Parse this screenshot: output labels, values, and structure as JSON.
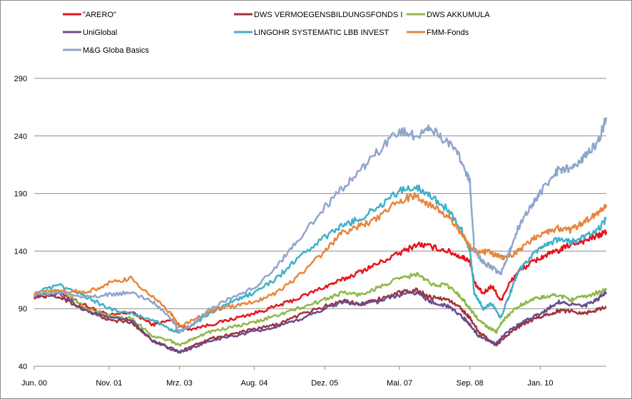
{
  "chart_data": {
    "type": "line",
    "title": "",
    "xlabel": "",
    "ylabel": "",
    "ylim": [
      40,
      290
    ],
    "yticks": [
      40,
      90,
      140,
      190,
      240,
      290
    ],
    "grid": "horizontal",
    "legend_position": "top",
    "x_tick_labels": [
      "Jun. 00",
      "Nov. 01",
      "Mrz. 03",
      "Aug. 04",
      "Dez. 05",
      "Mai. 07",
      "Sep. 08",
      "Jan. 10"
    ],
    "x_tick_positions": [
      0,
      17,
      33,
      50,
      66,
      83,
      99,
      115
    ],
    "x_max": 130,
    "series": [
      {
        "name": "\"ARERO\"",
        "color": "#e8141c",
        "points": [
          [
            0,
            100
          ],
          [
            6,
            104
          ],
          [
            12,
            92
          ],
          [
            17,
            84
          ],
          [
            22,
            87
          ],
          [
            27,
            76
          ],
          [
            31,
            80
          ],
          [
            35,
            72
          ],
          [
            40,
            76
          ],
          [
            45,
            81
          ],
          [
            50,
            86
          ],
          [
            55,
            92
          ],
          [
            60,
            99
          ],
          [
            66,
            109
          ],
          [
            70,
            115
          ],
          [
            74,
            122
          ],
          [
            78,
            129
          ],
          [
            83,
            138
          ],
          [
            87,
            146
          ],
          [
            90,
            144
          ],
          [
            94,
            140
          ],
          [
            97,
            135
          ],
          [
            99,
            132
          ],
          [
            100,
            112
          ],
          [
            102,
            103
          ],
          [
            104,
            110
          ],
          [
            106,
            97
          ],
          [
            108,
            112
          ],
          [
            110,
            122
          ],
          [
            113,
            130
          ],
          [
            116,
            136
          ],
          [
            119,
            140
          ],
          [
            122,
            146
          ],
          [
            125,
            149
          ],
          [
            128,
            153
          ],
          [
            130,
            157
          ]
        ]
      },
      {
        "name": "DWS VERMOEGENSBILDUNGSFONDS  I",
        "color": "#a0333a",
        "points": [
          [
            0,
            102
          ],
          [
            6,
            100
          ],
          [
            12,
            88
          ],
          [
            17,
            80
          ],
          [
            22,
            78
          ],
          [
            27,
            62
          ],
          [
            31,
            56
          ],
          [
            33,
            52
          ],
          [
            36,
            58
          ],
          [
            40,
            64
          ],
          [
            45,
            68
          ],
          [
            50,
            72
          ],
          [
            55,
            76
          ],
          [
            60,
            84
          ],
          [
            66,
            92
          ],
          [
            70,
            97
          ],
          [
            74,
            94
          ],
          [
            78,
            98
          ],
          [
            83,
            104
          ],
          [
            87,
            106
          ],
          [
            90,
            100
          ],
          [
            94,
            98
          ],
          [
            97,
            90
          ],
          [
            99,
            82
          ],
          [
            101,
            70
          ],
          [
            103,
            64
          ],
          [
            105,
            58
          ],
          [
            107,
            66
          ],
          [
            110,
            74
          ],
          [
            113,
            80
          ],
          [
            116,
            84
          ],
          [
            119,
            88
          ],
          [
            122,
            88
          ],
          [
            125,
            86
          ],
          [
            128,
            89
          ],
          [
            130,
            92
          ]
        ]
      },
      {
        "name": "DWS AKKUMULA",
        "color": "#8fb84a",
        "points": [
          [
            0,
            102
          ],
          [
            6,
            106
          ],
          [
            12,
            90
          ],
          [
            17,
            84
          ],
          [
            22,
            82
          ],
          [
            27,
            66
          ],
          [
            31,
            62
          ],
          [
            33,
            58
          ],
          [
            36,
            64
          ],
          [
            40,
            70
          ],
          [
            45,
            74
          ],
          [
            50,
            78
          ],
          [
            55,
            84
          ],
          [
            60,
            90
          ],
          [
            66,
            98
          ],
          [
            70,
            104
          ],
          [
            74,
            102
          ],
          [
            78,
            108
          ],
          [
            83,
            116
          ],
          [
            87,
            120
          ],
          [
            90,
            112
          ],
          [
            94,
            110
          ],
          [
            97,
            100
          ],
          [
            99,
            90
          ],
          [
            101,
            80
          ],
          [
            103,
            74
          ],
          [
            105,
            70
          ],
          [
            107,
            82
          ],
          [
            110,
            92
          ],
          [
            113,
            98
          ],
          [
            116,
            100
          ],
          [
            119,
            102
          ],
          [
            122,
            98
          ],
          [
            125,
            100
          ],
          [
            128,
            104
          ],
          [
            130,
            106
          ]
        ]
      },
      {
        "name": "UniGlobal",
        "color": "#6b4c8c",
        "points": [
          [
            0,
            101
          ],
          [
            6,
            102
          ],
          [
            12,
            88
          ],
          [
            17,
            82
          ],
          [
            22,
            80
          ],
          [
            27,
            62
          ],
          [
            31,
            55
          ],
          [
            33,
            52
          ],
          [
            36,
            56
          ],
          [
            40,
            62
          ],
          [
            45,
            66
          ],
          [
            50,
            70
          ],
          [
            55,
            74
          ],
          [
            60,
            80
          ],
          [
            66,
            90
          ],
          [
            70,
            96
          ],
          [
            74,
            94
          ],
          [
            78,
            96
          ],
          [
            83,
            102
          ],
          [
            87,
            104
          ],
          [
            90,
            96
          ],
          [
            94,
            92
          ],
          [
            97,
            84
          ],
          [
            99,
            76
          ],
          [
            101,
            66
          ],
          [
            103,
            62
          ],
          [
            105,
            60
          ],
          [
            107,
            68
          ],
          [
            110,
            76
          ],
          [
            113,
            82
          ],
          [
            116,
            88
          ],
          [
            119,
            96
          ],
          [
            122,
            94
          ],
          [
            125,
            92
          ],
          [
            128,
            98
          ],
          [
            130,
            104
          ]
        ]
      },
      {
        "name": "LINGOHR SYSTEMATIC  LBB INVEST",
        "color": "#3fb0c8",
        "points": [
          [
            0,
            104
          ],
          [
            6,
            110
          ],
          [
            12,
            100
          ],
          [
            17,
            90
          ],
          [
            22,
            86
          ],
          [
            27,
            80
          ],
          [
            31,
            72
          ],
          [
            33,
            70
          ],
          [
            36,
            76
          ],
          [
            40,
            86
          ],
          [
            45,
            96
          ],
          [
            50,
            104
          ],
          [
            55,
            116
          ],
          [
            60,
            134
          ],
          [
            66,
            152
          ],
          [
            70,
            162
          ],
          [
            74,
            168
          ],
          [
            78,
            178
          ],
          [
            83,
            192
          ],
          [
            87,
            196
          ],
          [
            90,
            188
          ],
          [
            94,
            176
          ],
          [
            97,
            160
          ],
          [
            99,
            140
          ],
          [
            100,
            104
          ],
          [
            102,
            90
          ],
          [
            104,
            94
          ],
          [
            106,
            82
          ],
          [
            108,
            102
          ],
          [
            110,
            122
          ],
          [
            113,
            136
          ],
          [
            116,
            144
          ],
          [
            119,
            150
          ],
          [
            122,
            148
          ],
          [
            125,
            152
          ],
          [
            128,
            158
          ],
          [
            130,
            168
          ]
        ]
      },
      {
        "name": "FMM-Fonds",
        "color": "#e8863c",
        "points": [
          [
            0,
            103
          ],
          [
            6,
            106
          ],
          [
            12,
            104
          ],
          [
            17,
            112
          ],
          [
            22,
            116
          ],
          [
            27,
            100
          ],
          [
            31,
            86
          ],
          [
            33,
            74
          ],
          [
            36,
            80
          ],
          [
            40,
            88
          ],
          [
            45,
            92
          ],
          [
            50,
            96
          ],
          [
            55,
            104
          ],
          [
            60,
            118
          ],
          [
            66,
            140
          ],
          [
            70,
            156
          ],
          [
            74,
            162
          ],
          [
            78,
            168
          ],
          [
            83,
            184
          ],
          [
            87,
            188
          ],
          [
            90,
            180
          ],
          [
            94,
            170
          ],
          [
            97,
            156
          ],
          [
            99,
            144
          ],
          [
            101,
            138
          ],
          [
            103,
            140
          ],
          [
            105,
            136
          ],
          [
            107,
            134
          ],
          [
            110,
            140
          ],
          [
            113,
            150
          ],
          [
            116,
            156
          ],
          [
            119,
            160
          ],
          [
            122,
            158
          ],
          [
            125,
            166
          ],
          [
            128,
            172
          ],
          [
            130,
            180
          ]
        ]
      },
      {
        "name": "M&G Globa Basics",
        "color": "#8ea6cc",
        "points": [
          [
            0,
            102
          ],
          [
            6,
            104
          ],
          [
            12,
            100
          ],
          [
            17,
            102
          ],
          [
            22,
            104
          ],
          [
            27,
            96
          ],
          [
            31,
            82
          ],
          [
            33,
            70
          ],
          [
            36,
            76
          ],
          [
            40,
            90
          ],
          [
            45,
            100
          ],
          [
            50,
            108
          ],
          [
            55,
            126
          ],
          [
            60,
            150
          ],
          [
            66,
            178
          ],
          [
            70,
            194
          ],
          [
            74,
            210
          ],
          [
            78,
            226
          ],
          [
            83,
            244
          ],
          [
            87,
            240
          ],
          [
            90,
            248
          ],
          [
            94,
            234
          ],
          [
            97,
            220
          ],
          [
            99,
            200
          ],
          [
            100,
            140
          ],
          [
            102,
            130
          ],
          [
            104,
            126
          ],
          [
            106,
            120
          ],
          [
            108,
            140
          ],
          [
            110,
            160
          ],
          [
            113,
            180
          ],
          [
            116,
            196
          ],
          [
            119,
            210
          ],
          [
            122,
            212
          ],
          [
            125,
            222
          ],
          [
            128,
            234
          ],
          [
            130,
            256
          ]
        ]
      }
    ]
  }
}
